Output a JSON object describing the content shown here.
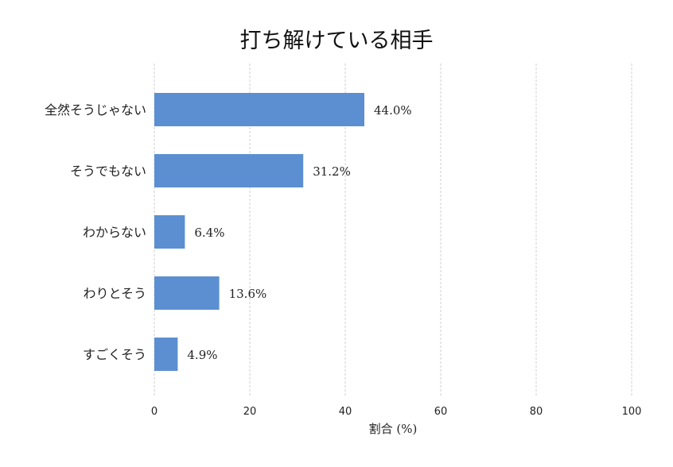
{
  "chart_data": {
    "type": "bar",
    "orientation": "horizontal",
    "title": "打ち解けている相手",
    "xlabel": "割合 (%)",
    "ylabel": "",
    "categories": [
      "全然そうじゃない",
      "そうでもない",
      "わからない",
      "わりとそう",
      "すごくそう"
    ],
    "values": [
      44.0,
      31.2,
      6.4,
      13.6,
      4.9
    ],
    "value_labels": [
      "44.0%",
      "31.2%",
      "6.4%",
      "13.6%",
      "4.9%"
    ],
    "xlim": [
      0,
      100
    ],
    "xticks": [
      0,
      20,
      40,
      60,
      80,
      100
    ],
    "xtick_labels": [
      "0",
      "20",
      "40",
      "60",
      "80",
      "100"
    ],
    "grid": "vertical dashed",
    "bar_color": "#5b8fd1"
  }
}
